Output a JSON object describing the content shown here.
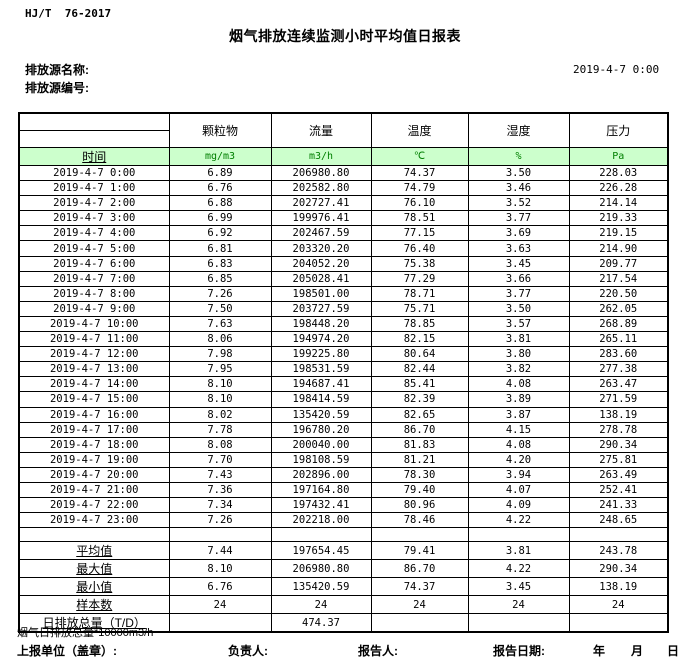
{
  "header": {
    "standard": "HJ/T  76-2017",
    "title": "烟气排放连续监测小时平均值日报表",
    "source_name_label": "排放源名称:",
    "source_id_label": "排放源编号:",
    "datetime": "2019-4-7 0:00"
  },
  "table": {
    "time_header": "时间",
    "columns": [
      {
        "label": "颗粒物",
        "unit": "mg/m3"
      },
      {
        "label": "流量",
        "unit": "m3/h"
      },
      {
        "label": "温度",
        "unit": "℃"
      },
      {
        "label": "湿度",
        "unit": "%"
      },
      {
        "label": "压力",
        "unit": "Pa"
      }
    ],
    "rows": [
      {
        "time": "2019-4-7 0:00",
        "values": [
          "6.89",
          "206980.80",
          "74.37",
          "3.50",
          "228.03"
        ]
      },
      {
        "time": "2019-4-7 1:00",
        "values": [
          "6.76",
          "202582.80",
          "74.79",
          "3.46",
          "226.28"
        ]
      },
      {
        "time": "2019-4-7 2:00",
        "values": [
          "6.88",
          "202727.41",
          "76.10",
          "3.52",
          "214.14"
        ]
      },
      {
        "time": "2019-4-7 3:00",
        "values": [
          "6.99",
          "199976.41",
          "78.51",
          "3.77",
          "219.33"
        ]
      },
      {
        "time": "2019-4-7 4:00",
        "values": [
          "6.92",
          "202467.59",
          "77.15",
          "3.69",
          "219.15"
        ]
      },
      {
        "time": "2019-4-7 5:00",
        "values": [
          "6.81",
          "203320.20",
          "76.40",
          "3.63",
          "214.90"
        ]
      },
      {
        "time": "2019-4-7 6:00",
        "values": [
          "6.83",
          "204052.20",
          "75.38",
          "3.45",
          "209.77"
        ]
      },
      {
        "time": "2019-4-7 7:00",
        "values": [
          "6.85",
          "205028.41",
          "77.29",
          "3.66",
          "217.54"
        ]
      },
      {
        "time": "2019-4-7 8:00",
        "values": [
          "7.26",
          "198501.00",
          "78.71",
          "3.77",
          "220.50"
        ]
      },
      {
        "time": "2019-4-7 9:00",
        "values": [
          "7.50",
          "203727.59",
          "75.71",
          "3.50",
          "262.05"
        ]
      },
      {
        "time": "2019-4-7 10:00",
        "values": [
          "7.63",
          "198448.20",
          "78.85",
          "3.57",
          "268.89"
        ]
      },
      {
        "time": "2019-4-7 11:00",
        "values": [
          "8.06",
          "194974.20",
          "82.15",
          "3.81",
          "265.11"
        ]
      },
      {
        "time": "2019-4-7 12:00",
        "values": [
          "7.98",
          "199225.80",
          "80.64",
          "3.80",
          "283.60"
        ]
      },
      {
        "time": "2019-4-7 13:00",
        "values": [
          "7.95",
          "198531.59",
          "82.44",
          "3.82",
          "277.38"
        ]
      },
      {
        "time": "2019-4-7 14:00",
        "values": [
          "8.10",
          "194687.41",
          "85.41",
          "4.08",
          "263.47"
        ]
      },
      {
        "time": "2019-4-7 15:00",
        "values": [
          "8.10",
          "198414.59",
          "82.39",
          "3.89",
          "271.59"
        ]
      },
      {
        "time": "2019-4-7 16:00",
        "values": [
          "8.02",
          "135420.59",
          "82.65",
          "3.87",
          "138.19"
        ]
      },
      {
        "time": "2019-4-7 17:00",
        "values": [
          "7.78",
          "196780.20",
          "86.70",
          "4.15",
          "278.78"
        ]
      },
      {
        "time": "2019-4-7 18:00",
        "values": [
          "8.08",
          "200040.00",
          "81.83",
          "4.08",
          "290.34"
        ]
      },
      {
        "time": "2019-4-7 19:00",
        "values": [
          "7.70",
          "198108.59",
          "81.21",
          "4.20",
          "275.81"
        ]
      },
      {
        "time": "2019-4-7 20:00",
        "values": [
          "7.43",
          "202896.00",
          "78.30",
          "3.94",
          "263.49"
        ]
      },
      {
        "time": "2019-4-7 21:00",
        "values": [
          "7.36",
          "197164.80",
          "79.40",
          "4.07",
          "252.41"
        ]
      },
      {
        "time": "2019-4-7 22:00",
        "values": [
          "7.34",
          "197432.41",
          "80.96",
          "4.09",
          "241.33"
        ]
      },
      {
        "time": "2019-4-7 23:00",
        "values": [
          "7.26",
          "202218.00",
          "78.46",
          "4.22",
          "248.65"
        ]
      }
    ],
    "summary": [
      {
        "label": "平均值",
        "values": [
          "7.44",
          "197654.45",
          "79.41",
          "3.81",
          "243.78"
        ]
      },
      {
        "label": "最大值",
        "values": [
          "8.10",
          "206980.80",
          "86.70",
          "4.22",
          "290.34"
        ]
      },
      {
        "label": "最小值",
        "values": [
          "6.76",
          "135420.59",
          "74.37",
          "3.45",
          "138.19"
        ]
      },
      {
        "label": "样本数",
        "values": [
          "24",
          "24",
          "24",
          "24",
          "24"
        ]
      },
      {
        "label": "日排放总量（T/D）",
        "values": [
          "",
          "474.37",
          "",
          "",
          ""
        ]
      }
    ]
  },
  "footer": {
    "note": "烟气日排放总量*10000m3/h",
    "report_unit_label": "上报单位（盖章）:",
    "responsible_label": "负责人:",
    "reporter_label": "报告人:",
    "report_date_label": "报告日期:",
    "year_label": "年",
    "month_label": "月",
    "day_label": "日"
  },
  "colors": {
    "header_row_bg": "#ccffcc",
    "unit_text": "#007f00",
    "border": "#000000"
  }
}
